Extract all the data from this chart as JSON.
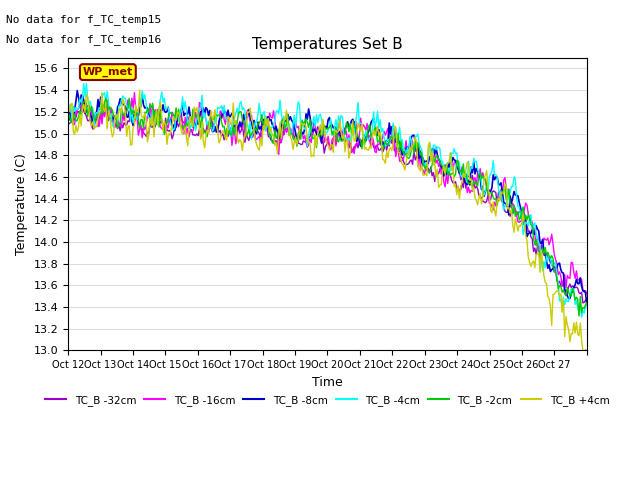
{
  "title": "Temperatures Set B",
  "xlabel": "Time",
  "ylabel": "Temperature (C)",
  "ylim": [
    13.0,
    15.7
  ],
  "yticks": [
    13.0,
    13.2,
    13.4,
    13.6,
    13.8,
    14.0,
    14.2,
    14.4,
    14.6,
    14.8,
    15.0,
    15.2,
    15.4,
    15.6
  ],
  "xtick_labels": [
    "Oct 12",
    "Oct 13",
    "Oct 14",
    "Oct 15",
    "Oct 16",
    "Oct 17",
    "Oct 18",
    "Oct 19",
    "Oct 20",
    "Oct 21",
    "Oct 22",
    "Oct 23",
    "Oct 24",
    "Oct 25",
    "Oct 26",
    "Oct 27"
  ],
  "annotations": [
    "No data for f_TC_temp15",
    "No data for f_TC_temp16"
  ],
  "wp_met_label": "WP_met",
  "legend_entries": [
    "TC_B -32cm",
    "TC_B -16cm",
    "TC_B -8cm",
    "TC_B -4cm",
    "TC_B -2cm",
    "TC_B +4cm"
  ],
  "legend_colors": [
    "#9900cc",
    "#ff00ff",
    "#0000cc",
    "#00ffff",
    "#00cc00",
    "#cccc00"
  ],
  "line_colors": {
    "TC_B_-32cm": "#9900cc",
    "TC_B_-16cm": "#ff00ff",
    "TC_B_-8cm": "#0000cc",
    "TC_B_-4cm": "#00ffff",
    "TC_B_-2cm": "#00cc00",
    "TC_B_+4cm": "#cccc00"
  },
  "background_color": "#ffffff",
  "grid_color": "#dddddd"
}
